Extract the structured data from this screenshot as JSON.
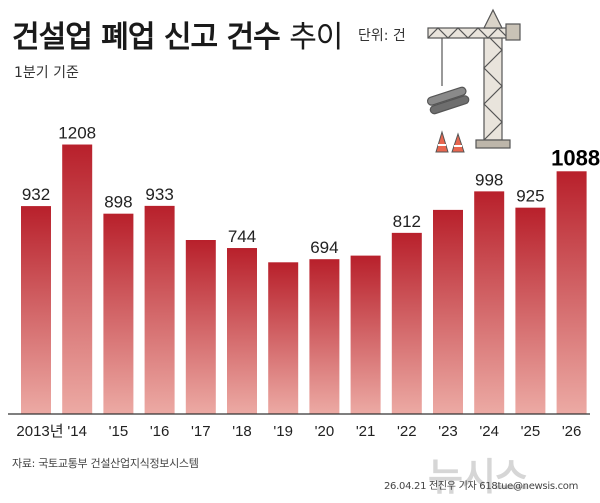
{
  "header": {
    "title_bold": "건설업 폐업 신고 건수",
    "title_light": "추이",
    "unit": "단위: 건",
    "subtitle": "1분기 기준"
  },
  "footer": {
    "source": "자료: 국토교통부 건설산업지식정보시스템",
    "credit": "26.04.21 전진우 기자 618tue@newsis.com",
    "watermark": "뉴시스"
  },
  "colors": {
    "bar_top": "#b8202b",
    "bar_bottom": "#ecaaa4",
    "highlight_label": "#000000"
  },
  "icons": [
    "crane-icon"
  ],
  "chart_data": {
    "type": "bar",
    "categories": [
      "2013년",
      "'14",
      "'15",
      "'16",
      "'17",
      "'18",
      "'19",
      "'20",
      "'21",
      "'22",
      "'23",
      "'24",
      "'25",
      "'26"
    ],
    "values": [
      932,
      1208,
      898,
      933,
      780,
      744,
      680,
      694,
      710,
      812,
      915,
      998,
      925,
      1088
    ],
    "labels": [
      "932",
      "1208",
      "898",
      "933",
      "",
      "744",
      "",
      "694",
      "",
      "812",
      "",
      "998",
      "925",
      "1088"
    ],
    "highlight_index": 13,
    "ylim": [
      0,
      1300
    ],
    "grid": false,
    "xlabel": "",
    "ylabel": ""
  }
}
